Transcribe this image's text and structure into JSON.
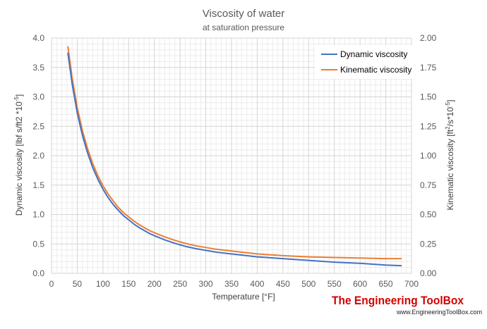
{
  "chart_data": {
    "type": "line",
    "title": "Viscosity of water",
    "subtitle": "at saturation pressure",
    "xlabel": "Temperature [°F]",
    "ylabel_left": {
      "base": "Dynamic viscosity [lbf s/ft2 *10",
      "sup": "-5",
      "tail": "]"
    },
    "ylabel_right": {
      "p1": "Kinematic viscosity  [ft",
      "sup1": "2",
      "p2": "/s*10",
      "sup2": "-5",
      "p3": "]"
    },
    "xlim": [
      0,
      700
    ],
    "ylim_left": [
      0,
      4
    ],
    "ylim_right": [
      0,
      2
    ],
    "x_ticks": [
      "0",
      "50",
      "100",
      "150",
      "200",
      "250",
      "300",
      "350",
      "400",
      "450",
      "500",
      "550",
      "600",
      "650",
      "700"
    ],
    "y_left_ticks": [
      "0.0",
      "0.5",
      "1.0",
      "1.5",
      "2.0",
      "2.5",
      "3.0",
      "3.5",
      "4.0"
    ],
    "y_right_ticks": [
      "0.00",
      "0.25",
      "0.50",
      "0.75",
      "1.00",
      "1.25",
      "1.50",
      "1.75",
      "2.00"
    ],
    "grid": true,
    "legend_position": "top-right",
    "series": [
      {
        "name": "Dynamic viscosity",
        "axis": "left",
        "color": "#4472c4",
        "x": [
          32,
          40,
          50,
          60,
          70,
          80,
          90,
          100,
          110,
          120,
          130,
          140,
          150,
          160,
          170,
          180,
          190,
          200,
          220,
          240,
          260,
          280,
          300,
          320,
          340,
          360,
          380,
          400,
          450,
          500,
          550,
          600,
          650,
          680
        ],
        "values": [
          3.74,
          3.23,
          2.73,
          2.35,
          2.05,
          1.8,
          1.6,
          1.43,
          1.29,
          1.17,
          1.07,
          0.98,
          0.91,
          0.84,
          0.78,
          0.73,
          0.68,
          0.64,
          0.57,
          0.51,
          0.46,
          0.42,
          0.39,
          0.36,
          0.34,
          0.32,
          0.3,
          0.28,
          0.25,
          0.22,
          0.19,
          0.17,
          0.14,
          0.13
        ]
      },
      {
        "name": "Kinematic viscosity",
        "axis": "right",
        "color": "#ed7d31",
        "x": [
          32,
          40,
          50,
          60,
          70,
          80,
          90,
          100,
          110,
          120,
          130,
          140,
          150,
          160,
          170,
          180,
          190,
          200,
          220,
          240,
          260,
          280,
          300,
          320,
          340,
          360,
          380,
          400,
          450,
          500,
          550,
          600,
          650,
          680
        ],
        "values": [
          1.925,
          1.665,
          1.41,
          1.215,
          1.06,
          0.935,
          0.83,
          0.745,
          0.675,
          0.615,
          0.56,
          0.515,
          0.48,
          0.445,
          0.415,
          0.39,
          0.365,
          0.345,
          0.31,
          0.28,
          0.255,
          0.235,
          0.22,
          0.205,
          0.195,
          0.185,
          0.175,
          0.165,
          0.15,
          0.14,
          0.135,
          0.13,
          0.125,
          0.125
        ]
      }
    ]
  },
  "logo": {
    "text": "The Engineering ToolBox",
    "site": "www.EngineeringToolBox.com"
  }
}
